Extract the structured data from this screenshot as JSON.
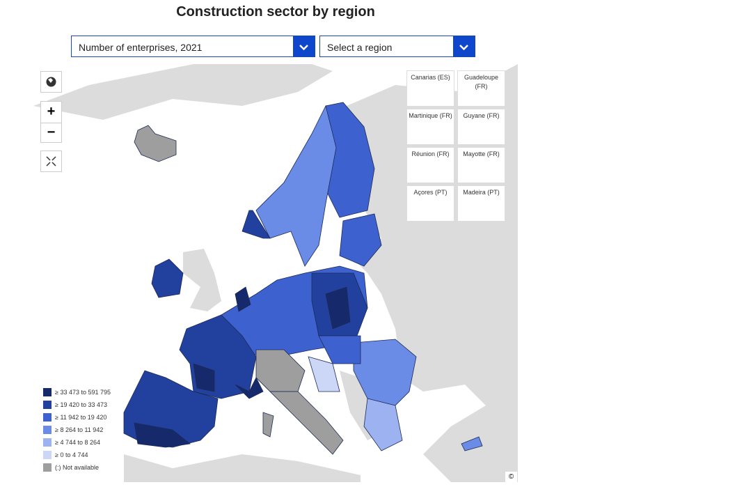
{
  "header": {
    "title": "Construction sector by region"
  },
  "controls": {
    "indicator_select": "Number of enterprises, 2021",
    "region_select": "Select a region"
  },
  "insets": [
    "Canarias (ES)",
    "Guadeloupe (FR)",
    "Martinique (FR)",
    "Guyane (FR)",
    "Réunion (FR)",
    "Mayotte (FR)",
    "Açores (PT)",
    "Madeira (PT)"
  ],
  "legend": {
    "items": [
      {
        "label": "≥ 33 473 to 591 795",
        "color": "#162a6b"
      },
      {
        "label": "≥ 19 420 to 33 473",
        "color": "#22409e"
      },
      {
        "label": "≥ 11 942 to 19 420",
        "color": "#3d62cf"
      },
      {
        "label": "≥ 8 264 to 11 942",
        "color": "#6a8be6"
      },
      {
        "label": "≥ 4 744 to 8 264",
        "color": "#9db2f0"
      },
      {
        "label": "≥ 0 to 4 744",
        "color": "#ccd7f8"
      },
      {
        "label": "(:) Not available",
        "color": "#9e9e9e"
      }
    ]
  },
  "copyright": "©"
}
